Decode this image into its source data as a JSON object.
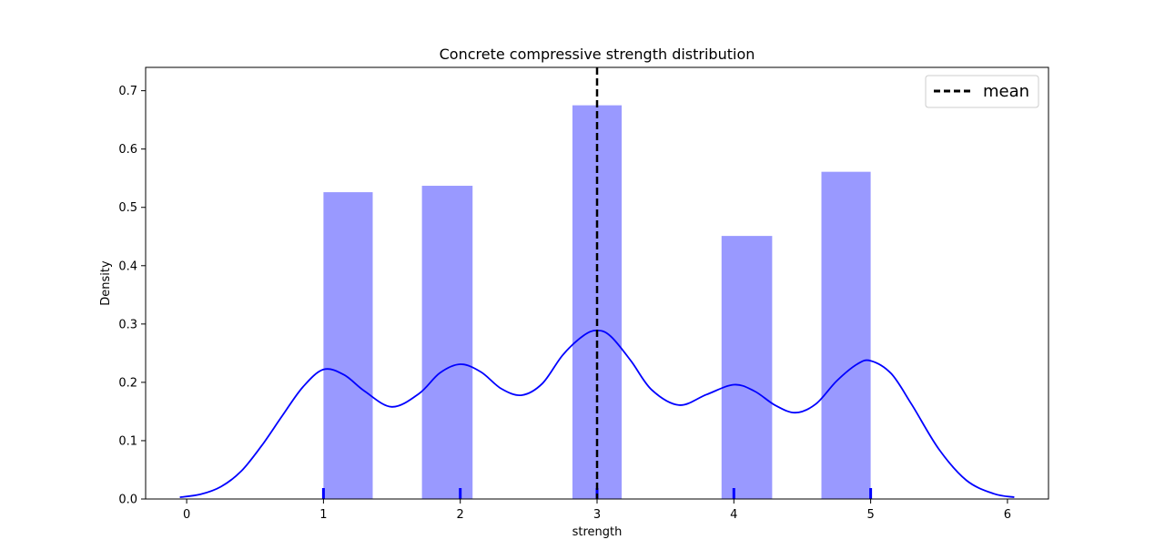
{
  "chart_data": {
    "type": "bar",
    "title": "Concrete compressive strength distribution",
    "xlabel": "strength",
    "ylabel": "Density",
    "xlim": [
      -0.3,
      6.3
    ],
    "ylim": [
      0,
      0.74
    ],
    "xticks": [
      0,
      1,
      2,
      3,
      4,
      5,
      6
    ],
    "yticks": [
      0.0,
      0.1,
      0.2,
      0.3,
      0.4,
      0.5,
      0.6,
      0.7
    ],
    "xtick_labels": [
      "0",
      "1",
      "2",
      "3",
      "4",
      "5",
      "6"
    ],
    "ytick_labels": [
      "0.0",
      "0.1",
      "0.2",
      "0.3",
      "0.4",
      "0.5",
      "0.6",
      "0.7"
    ],
    "bars": [
      {
        "x0": 1.0,
        "x1": 1.36,
        "value": 0.526
      },
      {
        "x0": 1.72,
        "x1": 2.09,
        "value": 0.537
      },
      {
        "x0": 2.82,
        "x1": 3.18,
        "value": 0.675
      },
      {
        "x0": 3.91,
        "x1": 4.28,
        "value": 0.451
      },
      {
        "x0": 4.64,
        "x1": 5.0,
        "value": 0.561
      }
    ],
    "kde": {
      "x": [
        -0.05,
        0.1,
        0.25,
        0.4,
        0.55,
        0.7,
        0.85,
        1.0,
        1.15,
        1.3,
        1.5,
        1.7,
        1.85,
        2.0,
        2.15,
        2.3,
        2.45,
        2.6,
        2.75,
        2.9,
        3.0,
        3.1,
        3.25,
        3.4,
        3.6,
        3.8,
        4.0,
        4.15,
        4.3,
        4.45,
        4.6,
        4.75,
        4.9,
        5.0,
        5.15,
        5.3,
        5.5,
        5.7,
        5.9,
        6.05
      ],
      "y": [
        0.003,
        0.008,
        0.021,
        0.048,
        0.092,
        0.143,
        0.192,
        0.222,
        0.213,
        0.185,
        0.158,
        0.181,
        0.216,
        0.231,
        0.218,
        0.189,
        0.178,
        0.198,
        0.247,
        0.28,
        0.289,
        0.279,
        0.236,
        0.187,
        0.161,
        0.179,
        0.196,
        0.185,
        0.161,
        0.148,
        0.163,
        0.202,
        0.231,
        0.237,
        0.215,
        0.162,
        0.085,
        0.032,
        0.009,
        0.003
      ]
    },
    "rug": [
      1,
      2,
      3,
      4,
      5
    ],
    "mean_line": {
      "x": 3.0,
      "label": "mean"
    },
    "legend": {
      "placement": "top-right",
      "entries": [
        "mean"
      ]
    },
    "colors": {
      "bars": "#9999ff",
      "kde": "#0000ff",
      "rug": "#0000ff",
      "mean": "#000000",
      "axes": "#000000"
    },
    "grid": false
  }
}
